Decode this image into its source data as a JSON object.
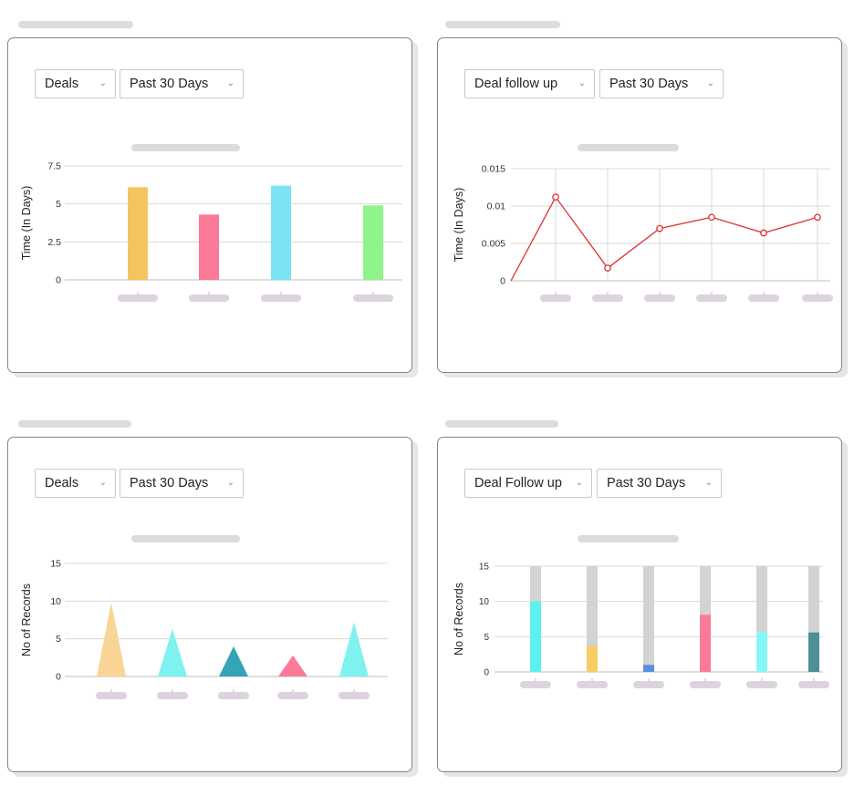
{
  "cards": [
    {
      "dropdowns": [
        {
          "value": "Deals"
        },
        {
          "value": "Past 30 Days"
        }
      ],
      "chart_data": {
        "type": "bar",
        "ylabel": "Time (In Days)",
        "ylim": [
          0,
          7.5
        ],
        "yticks": [
          "0",
          "2.5",
          "5",
          "7.5"
        ],
        "categories": [
          "",
          "",
          "",
          ""
        ],
        "values": [
          6.1,
          4.3,
          6.2,
          4.9
        ],
        "colors": [
          "#f4c55e",
          "#fa7a98",
          "#7ae3f4",
          "#8ef58d"
        ],
        "grid": true
      }
    },
    {
      "dropdowns": [
        {
          "value": "Deal follow up"
        },
        {
          "value": "Past 30 Days"
        }
      ],
      "chart_data": {
        "type": "line",
        "ylabel": "Time (In Days)",
        "ylim": [
          0,
          0.015
        ],
        "yticks": [
          "0",
          "0.005",
          "0.01",
          "0.015"
        ],
        "categories": [
          "",
          "",
          "",
          "",
          "",
          ""
        ],
        "values": [
          0.0112,
          0.0017,
          0.007,
          0.0085,
          0.0064,
          0.0085
        ],
        "start_value": 0,
        "color": "#e03030",
        "grid": true
      }
    },
    {
      "dropdowns": [
        {
          "value": "Deals"
        },
        {
          "value": "Past 30 Days"
        }
      ],
      "chart_data": {
        "type": "bar",
        "ylabel": "No of Records",
        "ylim": [
          0,
          15
        ],
        "yticks": [
          "0",
          "5",
          "10",
          "15"
        ],
        "categories": [
          "",
          "",
          "",
          "",
          ""
        ],
        "values": [
          9.8,
          6.3,
          4,
          2.8,
          7.2
        ],
        "colors": [
          "#f8d594",
          "#7ff2f0",
          "#36a3b8",
          "#fa7a98",
          "#7ff2f0"
        ],
        "grid": true
      }
    },
    {
      "dropdowns": [
        {
          "value": "Deal Follow up"
        },
        {
          "value": "Past 30 Days"
        }
      ],
      "chart_data": {
        "type": "bar",
        "ylabel": "No of Records",
        "ylim": [
          0,
          15
        ],
        "yticks": [
          "0",
          "5",
          "10",
          "15"
        ],
        "categories": [
          "",
          "",
          "",
          "",
          "",
          ""
        ],
        "values": [
          10,
          3.7,
          1,
          8.1,
          5.7,
          5.6
        ],
        "background_values": [
          15,
          15,
          15,
          15,
          15,
          15
        ],
        "colors": [
          "#5ef0f0",
          "#f7cd66",
          "#5a8fe0",
          "#fa7a98",
          "#88f6f7",
          "#4e8e97"
        ],
        "background_color": "#d3d3d3",
        "grid": true
      }
    }
  ]
}
